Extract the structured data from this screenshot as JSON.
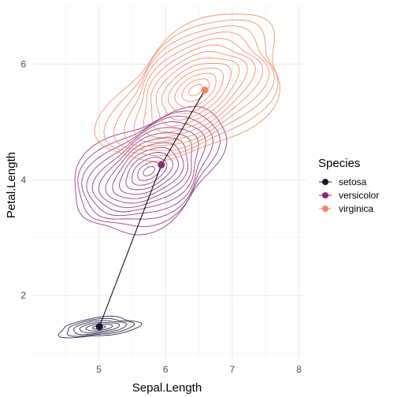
{
  "chart_data": {
    "type": "scatter",
    "title": "",
    "xlabel": "Sepal.Length",
    "ylabel": "Petal.Length",
    "xlim": [
      4.0,
      8.1
    ],
    "ylim": [
      0.9,
      7.0
    ],
    "x_ticks": [
      5,
      6,
      7,
      8
    ],
    "y_ticks": [
      2,
      4,
      6
    ],
    "grid": true,
    "legend": {
      "title": "Species",
      "placement": "right",
      "entries": [
        "setosa",
        "versicolor",
        "virginica"
      ]
    },
    "series": [
      {
        "name": "setosa",
        "color": "#1c1438",
        "mean": {
          "x": 5.006,
          "y": 1.462
        },
        "density_center": {
          "x": 5.0,
          "y": 1.45
        },
        "spread": {
          "x": 0.6,
          "y": 0.16
        }
      },
      {
        "name": "versicolor",
        "color": "#8c2a7d",
        "mean": {
          "x": 5.936,
          "y": 4.26
        },
        "density_center": {
          "x": 5.75,
          "y": 4.15
        },
        "spread": {
          "x": 1.25,
          "y": 0.85
        }
      },
      {
        "name": "virginica",
        "color": "#f4845f",
        "mean": {
          "x": 6.588,
          "y": 5.552
        },
        "density_center": {
          "x": 6.45,
          "y": 5.55
        },
        "spread": {
          "x": 1.5,
          "y": 1.0
        }
      }
    ],
    "connecting_line": "means"
  }
}
